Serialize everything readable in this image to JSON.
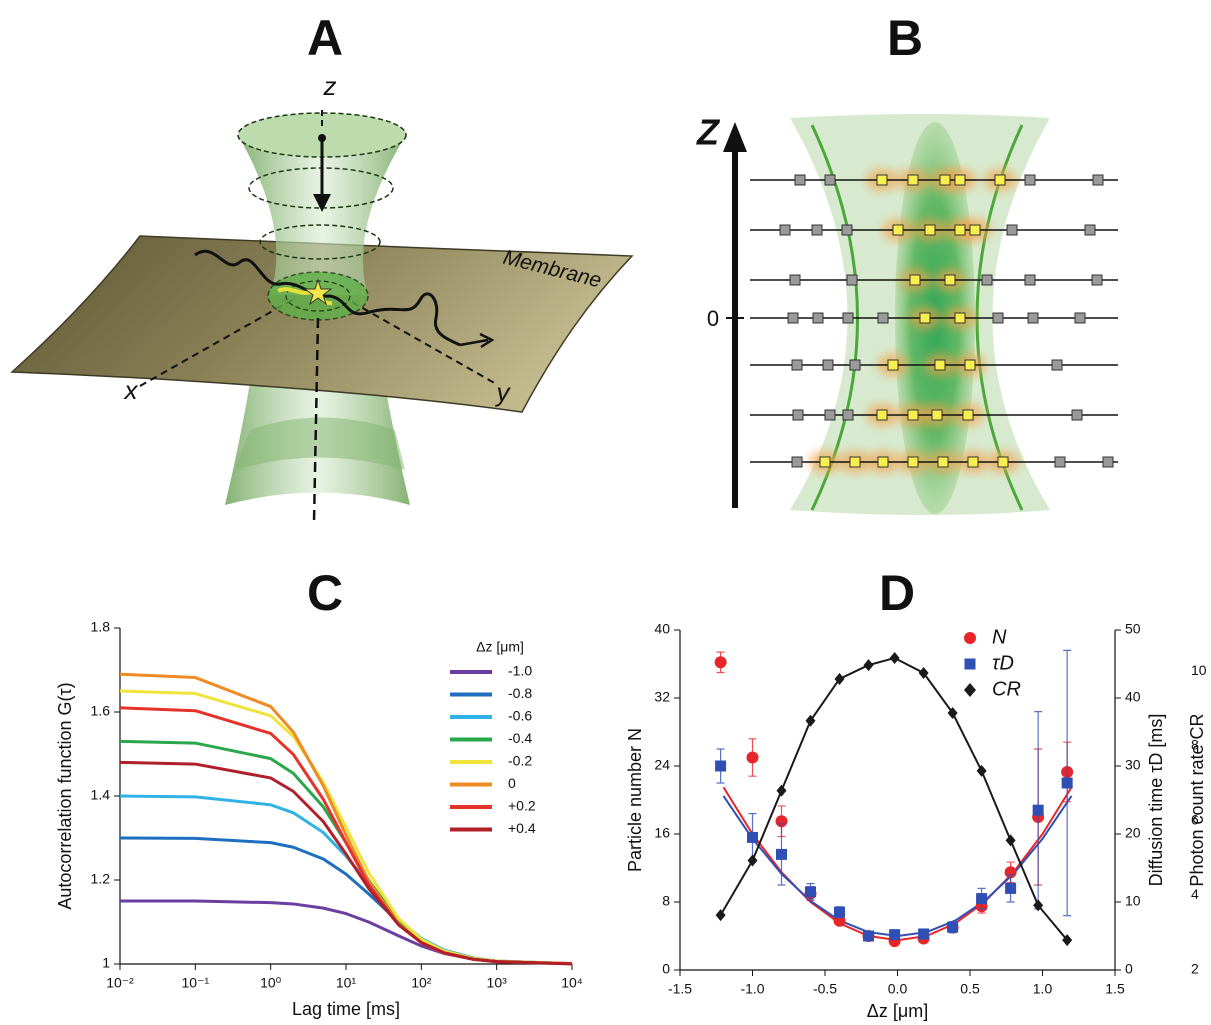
{
  "diagram_a": {
    "title": "A",
    "axis_z": "z",
    "axis_x": "x",
    "axis_y": "y",
    "membrane": "Membrane"
  },
  "diagram_b": {
    "title": "B",
    "axis_z": "Z",
    "zero": "0"
  },
  "chart_data": [
    {
      "type": "line",
      "title": "C",
      "xlabel": "Lag time [ms]",
      "ylabel": "Autocorrelation function G(τ)",
      "xscale": "log",
      "xlim": [
        0.01,
        10000
      ],
      "xticks": [
        {
          "value": 0.01,
          "label": "10⁻²"
        },
        {
          "value": 0.1,
          "label": "10⁻¹"
        },
        {
          "value": 1,
          "label": "10⁰"
        },
        {
          "value": 10,
          "label": "10¹"
        },
        {
          "value": 100,
          "label": "10²"
        },
        {
          "value": 1000,
          "label": "10³"
        },
        {
          "value": 10000,
          "label": "10⁴"
        }
      ],
      "ylim": [
        1,
        1.8
      ],
      "yticks": [
        1,
        1.2,
        1.4,
        1.6,
        1.8
      ],
      "legend_title": "Δz [μm]",
      "legend": "upper right",
      "x": [
        0.01,
        0.1,
        1,
        2,
        5,
        10,
        20,
        50,
        100,
        200,
        500,
        1000,
        10000
      ],
      "series": [
        {
          "name": "-1.0",
          "color": "#6a3fa0",
          "values": [
            1.15,
            1.15,
            1.146,
            1.143,
            1.133,
            1.12,
            1.1,
            1.067,
            1.043,
            1.025,
            1.011,
            1.006,
            1.001
          ]
        },
        {
          "name": "-0.8",
          "color": "#1e6fbf",
          "values": [
            1.3,
            1.299,
            1.289,
            1.278,
            1.25,
            1.214,
            1.167,
            1.1,
            1.06,
            1.033,
            1.014,
            1.007,
            1.001
          ]
        },
        {
          "name": "-0.6",
          "color": "#2fb2e6",
          "values": [
            1.4,
            1.398,
            1.379,
            1.36,
            1.313,
            1.257,
            1.19,
            1.106,
            1.061,
            1.033,
            1.014,
            1.007,
            1.001
          ]
        },
        {
          "name": "-0.4",
          "color": "#2aa74a",
          "values": [
            1.53,
            1.526,
            1.489,
            1.454,
            1.374,
            1.289,
            1.199,
            1.103,
            1.057,
            1.03,
            1.012,
            1.006,
            1.001
          ]
        },
        {
          "name": "-0.2",
          "color": "#f0e43a",
          "values": [
            1.65,
            1.644,
            1.591,
            1.542,
            1.433,
            1.325,
            1.217,
            1.108,
            1.059,
            1.031,
            1.013,
            1.007,
            1.001
          ]
        },
        {
          "name": "0",
          "color": "#f08a24",
          "values": [
            1.69,
            1.682,
            1.613,
            1.552,
            1.424,
            1.307,
            1.197,
            1.095,
            1.051,
            1.026,
            1.011,
            1.006,
            1.001
          ]
        },
        {
          "name": "+0.2",
          "color": "#e5322b",
          "values": [
            1.61,
            1.603,
            1.549,
            1.499,
            1.392,
            1.289,
            1.189,
            1.093,
            1.051,
            1.026,
            1.011,
            1.005,
            1.001
          ]
        },
        {
          "name": "+0.4",
          "color": "#b0202a",
          "values": [
            1.48,
            1.476,
            1.443,
            1.411,
            1.339,
            1.262,
            1.18,
            1.093,
            1.051,
            1.027,
            1.011,
            1.006,
            1
          ]
        }
      ]
    },
    {
      "type": "scatter",
      "title": "D",
      "xlabel": "Δz [μm]",
      "ylabel": "Particle number N",
      "y2label": "Diffusion time τD [ms]",
      "y3label": "Photon count rate CR",
      "xlim": [
        -1.5,
        1.5
      ],
      "xticks": [
        -1.5,
        {
          "value": -1,
          "label": "-1.0"
        },
        -0.5,
        {
          "value": 0,
          "label": "0.0"
        },
        0.5,
        {
          "value": 1,
          "label": "1.0"
        },
        1.5
      ],
      "ylim": [
        0,
        40
      ],
      "yticks": [
        0,
        8,
        16,
        24,
        32,
        40
      ],
      "y2lim": [
        0,
        50
      ],
      "y2ticks": [
        0,
        10,
        20,
        30,
        40,
        50
      ],
      "y3lim": [
        2,
        11.1
      ],
      "y3ticks": [
        2,
        4,
        6,
        8,
        10
      ],
      "legend": "upper right",
      "x": [
        -1.22,
        -1.0,
        -0.8,
        -0.6,
        -0.4,
        -0.2,
        -0.02,
        0.18,
        0.38,
        0.58,
        0.78,
        0.97,
        1.17
      ],
      "series": [
        {
          "name": "N",
          "color": "#e8262a",
          "marker": "circle",
          "values": [
            36.2,
            25,
            17.5,
            9,
            5.8,
            4,
            3.4,
            3.7,
            5,
            7.5,
            11.5,
            18,
            23.3
          ],
          "errors": [
            1.2,
            2.2,
            1.8,
            0.8,
            0.5,
            0.4,
            0.4,
            0.4,
            0.5,
            0.8,
            1.2,
            8,
            3.5
          ]
        },
        {
          "name": "τD",
          "color": "#2f4fb5",
          "marker": "square",
          "axis": "y2",
          "values": [
            30,
            19.5,
            17,
            11.5,
            8.5,
            5,
            5.2,
            5.3,
            6.3,
            10.5,
            12,
            23.5,
            27.5
          ],
          "errors": [
            2.5,
            3.5,
            4.5,
            1.2,
            0.8,
            0.5,
            0.5,
            0.5,
            0.8,
            1.5,
            2,
            14.5,
            19.5
          ]
        },
        {
          "name": "CR",
          "color": "#1a1a1a",
          "marker": "diamond",
          "axis": "y3",
          "line": true,
          "values": [
            3.47,
            4.93,
            6.8,
            8.67,
            9.79,
            10.16,
            10.35,
            9.95,
            8.88,
            7.33,
            5.47,
            3.73,
            2.8
          ]
        }
      ],
      "fit_x": [
        -1.2,
        -1.0,
        -0.8,
        -0.6,
        -0.4,
        -0.2,
        0,
        0.2,
        0.4,
        0.6,
        0.8,
        1.0,
        1.2
      ],
      "fits": [
        {
          "color": "#e8262a",
          "values": [
            21.5,
            16,
            11.5,
            8,
            5.5,
            4,
            3.5,
            4,
            5.5,
            8,
            11.5,
            16,
            21.5
          ]
        },
        {
          "color": "#2f4fb5",
          "axis": "y2",
          "values": [
            25.59,
            19.3,
            14.15,
            10.15,
            7.29,
            5.57,
            5,
            5.57,
            7.29,
            10.15,
            14.15,
            19.3,
            25.59
          ]
        }
      ]
    }
  ]
}
